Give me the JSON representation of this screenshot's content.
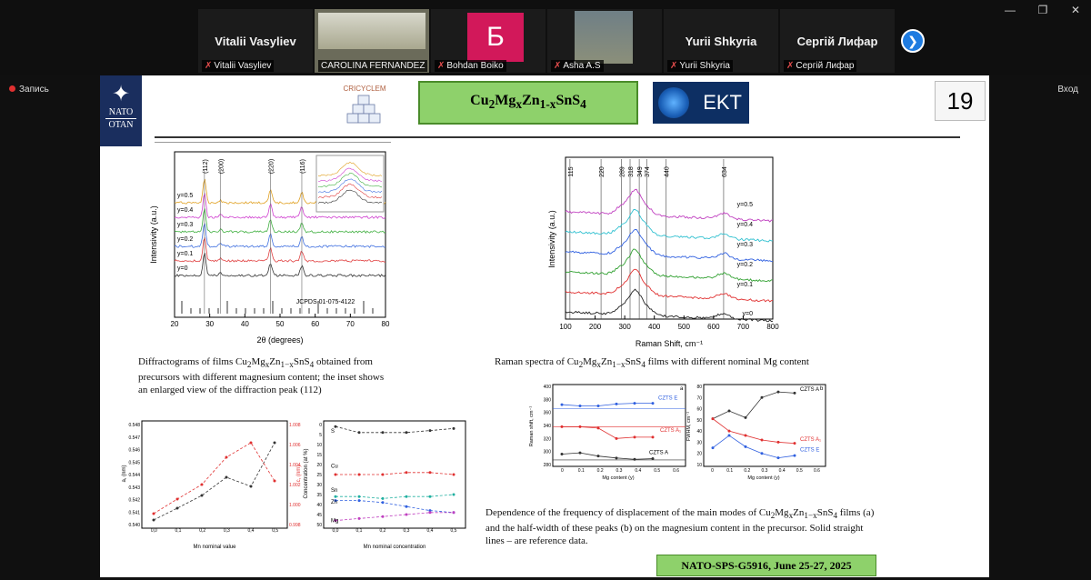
{
  "window_controls": {
    "minimize": "—",
    "restore": "❐",
    "close": "✕"
  },
  "participants": [
    {
      "name": "Vitalii Vasyliev",
      "label": "Vitalii Vasyliev"
    },
    {
      "name": "",
      "label": "CAROLINA FERNANDEZ S..."
    },
    {
      "name": "Б",
      "label": "Bohdan Boiko"
    },
    {
      "name": "",
      "label": "Asha A.S"
    },
    {
      "name": "Yurii Shkyria",
      "label": "Yurii Shkyria"
    },
    {
      "name": "Сергій Лифар",
      "label": "Сергій Лифар"
    }
  ],
  "recording_label": "Запись",
  "exit_label": "Вход",
  "slide": {
    "nato_top": "NATO",
    "nato_bottom": "OTAN",
    "cricycle": "CRICYCLEM",
    "title_html": "Cu<sub>2</sub>Mg<sub>x</sub>Zn<sub>1-x</sub>SnS<sub>4</sub>",
    "ekt": "EKT",
    "slide_number": "19",
    "caption_xrd_html": "Diffractograms of films Cu<sub>2</sub>Mg<sub>x</sub>Zn<sub>1−x</sub>SnS<sub>4</sub> obtained from<br>precursors with different magnesium content; the inset shows<br>an enlarged view of the diffraction peak (112)",
    "caption_raman_html": "Raman spectra of Cu<sub>2</sub>Mg<sub>x</sub>Zn<sub>1−x</sub>SnS<sub>4</sub> films with different nominal Mg content",
    "caption_freq_html": "Dependence of the frequency of displacement of the main modes of Cu<sub>2</sub>Mg<sub>x</sub>Zn<sub>1−x</sub>SnS<sub>4</sub> films (a)<br>and the half-width of these peaks (b) on the magnesium content in the precursor. Solid straight<br>lines – are reference data.",
    "footer": "NATO-SPS-G5916, June 25-27, 2025"
  },
  "xrd": {
    "ylabel": "Intensivity (a.u.)",
    "xlabel": "2θ (degrees)",
    "jcpds": "JCPDS 01-075-4122",
    "ticks": [
      "20",
      "30",
      "40",
      "50",
      "60",
      "70",
      "80"
    ],
    "peaks": [
      "(112)",
      "(200)",
      "(220)",
      "(116)"
    ],
    "series": [
      "y=0.5",
      "y=0.4",
      "y=0.3",
      "y=0.2",
      "y=0.1",
      "y=0"
    ],
    "colors": [
      "#e0a020",
      "#d040d0",
      "#40b040",
      "#4070e0",
      "#e04040",
      "#333333"
    ]
  },
  "raman": {
    "ylabel": "Intensivity (a.u.)",
    "xlabel": "Raman Shift, cm⁻¹",
    "ticks": [
      "100",
      "200",
      "300",
      "400",
      "500",
      "600",
      "700",
      "800"
    ],
    "peaks": [
      "115",
      "220",
      "289",
      "318",
      "349",
      "374",
      "440",
      "634"
    ],
    "series": [
      "y=0.5",
      "y=0.4",
      "y=0.3",
      "y=0.2",
      "y=0.1",
      "y=0"
    ],
    "colors": [
      "#c040c0",
      "#30c0d0",
      "#3060e0",
      "#30a030",
      "#e03030",
      "#222222"
    ]
  },
  "lattice": {
    "xlabel": "Mn nominal value",
    "ylabel_left": "a, (nm)",
    "ylabel_right": "c, (nm)",
    "xticks": [
      "0,0",
      "0,1",
      "0,2",
      "0,3",
      "0,4",
      "0,5"
    ],
    "yticks_left": [
      "0.548",
      "0.547",
      "0.546",
      "0.545",
      "0.544",
      "0.543",
      "0.542",
      "0.541",
      "0.540"
    ],
    "yticks_right": [
      "1.008",
      "1.006",
      "1.004",
      "1.002",
      "1.000",
      "0.998"
    ]
  },
  "composition": {
    "xlabel": "Mn nominal concentration",
    "ylabel": "Concentration (at %)",
    "xticks": [
      "0,0",
      "0,1",
      "0,2",
      "0,3",
      "0,4",
      "0,5"
    ],
    "yticks": [
      "0",
      "5",
      "10",
      "15",
      "20",
      "25",
      "30",
      "35",
      "40",
      "45",
      "50"
    ],
    "labels": [
      "S",
      "Cu",
      "Sn",
      "Zn",
      "Mg"
    ]
  },
  "freq_a": {
    "xlabel": "Mg content (y)",
    "ylabel": "Raman shift, cm⁻¹",
    "tag": "a",
    "xticks": [
      "0",
      "0.1",
      "0.2",
      "0.3",
      "0.4",
      "0.5",
      "0.6"
    ],
    "yticks": [
      "400",
      "380",
      "360",
      "340",
      "320",
      "300",
      "280"
    ],
    "labels": [
      "CZTS E",
      "CZTS A₁",
      "CZTS A"
    ]
  },
  "freq_b": {
    "xlabel": "Mg content (y)",
    "ylabel": "FWHM, cm⁻¹",
    "tag": "b",
    "xticks": [
      "0",
      "0.1",
      "0.2",
      "0.3",
      "0.4",
      "0.5",
      "0.6"
    ],
    "yticks": [
      "80",
      "70",
      "60",
      "50",
      "40",
      "30",
      "20",
      "10"
    ],
    "labels": [
      "CZTS A",
      "CZTS A₁",
      "CZTS E"
    ]
  }
}
